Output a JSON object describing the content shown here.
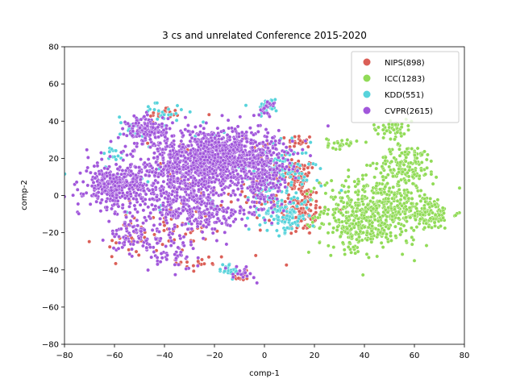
{
  "chart_data": {
    "type": "scatter",
    "title": "3 cs and unrelated Conference 2015-2020",
    "xlabel": "comp-1",
    "ylabel": "comp-2",
    "xlim": [
      -80,
      80
    ],
    "ylim": [
      -80,
      80
    ],
    "xticks": [
      -80,
      -60,
      -40,
      -20,
      0,
      20,
      40,
      60,
      80
    ],
    "yticks": [
      -80,
      -60,
      -40,
      -20,
      0,
      20,
      40,
      60,
      80
    ],
    "grid": false,
    "legend_position": "top-right",
    "series": [
      {
        "name": "NIPS(898)",
        "color": "#db5f57",
        "count": 898,
        "clusters": [
          {
            "cx": 14,
            "cy": 10,
            "sx": 3,
            "sy": 5,
            "n": 70
          },
          {
            "cx": 15,
            "cy": -8,
            "sx": 4,
            "sy": 7,
            "n": 110
          },
          {
            "cx": 14,
            "cy": 29,
            "sx": 2.5,
            "sy": 2,
            "n": 20
          },
          {
            "cx": -40,
            "cy": 44,
            "sx": 3,
            "sy": 2,
            "n": 18
          },
          {
            "cx": -9,
            "cy": -44,
            "sx": 2,
            "sy": 1.5,
            "n": 10
          },
          {
            "cx": -38,
            "cy": -18,
            "sx": 8,
            "sy": 6,
            "n": 40
          },
          {
            "cx": -25,
            "cy": -36,
            "sx": 5,
            "sy": 3,
            "n": 18
          },
          {
            "cx": -55,
            "cy": -25,
            "sx": 6,
            "sy": 5,
            "n": 20
          },
          {
            "cx": 5,
            "cy": 5,
            "sx": 6,
            "sy": 12,
            "n": 45
          },
          {
            "cx": -20,
            "cy": 8,
            "sx": 18,
            "sy": 14,
            "n": 60
          }
        ]
      },
      {
        "name": "ICC(1283)",
        "color": "#91db57",
        "count": 1283,
        "clusters": [
          {
            "cx": 45,
            "cy": -8,
            "sx": 11,
            "sy": 9,
            "n": 520
          },
          {
            "cx": 65,
            "cy": -10,
            "sx": 5,
            "sy": 4,
            "n": 110
          },
          {
            "cx": 57,
            "cy": 17,
            "sx": 6,
            "sy": 5,
            "n": 140
          },
          {
            "cx": 51,
            "cy": 36,
            "sx": 4,
            "sy": 2.5,
            "n": 50
          },
          {
            "cx": 31,
            "cy": 28,
            "sx": 3,
            "sy": 1.5,
            "n": 30
          },
          {
            "cx": 37,
            "cy": -20,
            "sx": 6,
            "sy": 5,
            "n": 90
          }
        ]
      },
      {
        "name": "KDD(551)",
        "color": "#57d3db",
        "count": 551,
        "clusters": [
          {
            "cx": 8,
            "cy": -10,
            "sx": 5,
            "sy": 5,
            "n": 110
          },
          {
            "cx": 8,
            "cy": 15,
            "sx": 5,
            "sy": 6,
            "n": 80
          },
          {
            "cx": 1,
            "cy": 4,
            "sx": 4,
            "sy": 4,
            "n": 50
          },
          {
            "cx": 1,
            "cy": 48,
            "sx": 2,
            "sy": 2,
            "n": 30
          },
          {
            "cx": -14,
            "cy": -40,
            "sx": 2,
            "sy": 2,
            "n": 20
          },
          {
            "cx": -40,
            "cy": 45,
            "sx": 4,
            "sy": 2,
            "n": 20
          },
          {
            "cx": -20,
            "cy": 15,
            "sx": 20,
            "sy": 14,
            "n": 70
          },
          {
            "cx": -52,
            "cy": 36,
            "sx": 4,
            "sy": 4,
            "n": 20
          },
          {
            "cx": -60,
            "cy": 22,
            "sx": 2,
            "sy": 2,
            "n": 15
          }
        ]
      },
      {
        "name": "CVPR(2615)",
        "color": "#a157db",
        "count": 2615,
        "clusters": [
          {
            "cx": -18,
            "cy": 20,
            "sx": 12,
            "sy": 8,
            "n": 950
          },
          {
            "cx": -35,
            "cy": 8,
            "sx": 12,
            "sy": 10,
            "n": 500
          },
          {
            "cx": -60,
            "cy": 5,
            "sx": 6,
            "sy": 6,
            "n": 300
          },
          {
            "cx": -47,
            "cy": 35,
            "sx": 4,
            "sy": 4,
            "n": 150
          },
          {
            "cx": -52,
            "cy": -22,
            "sx": 5,
            "sy": 4,
            "n": 80
          },
          {
            "cx": 0,
            "cy": 10,
            "sx": 4,
            "sy": 10,
            "n": 200
          },
          {
            "cx": -25,
            "cy": -10,
            "sx": 10,
            "sy": 5,
            "n": 200
          },
          {
            "cx": 1,
            "cy": 47,
            "sx": 2,
            "sy": 2,
            "n": 20
          },
          {
            "cx": -38,
            "cy": -30,
            "sx": 6,
            "sy": 5,
            "n": 60
          },
          {
            "cx": -10,
            "cy": -42,
            "sx": 3,
            "sy": 2,
            "n": 20
          }
        ]
      }
    ]
  }
}
